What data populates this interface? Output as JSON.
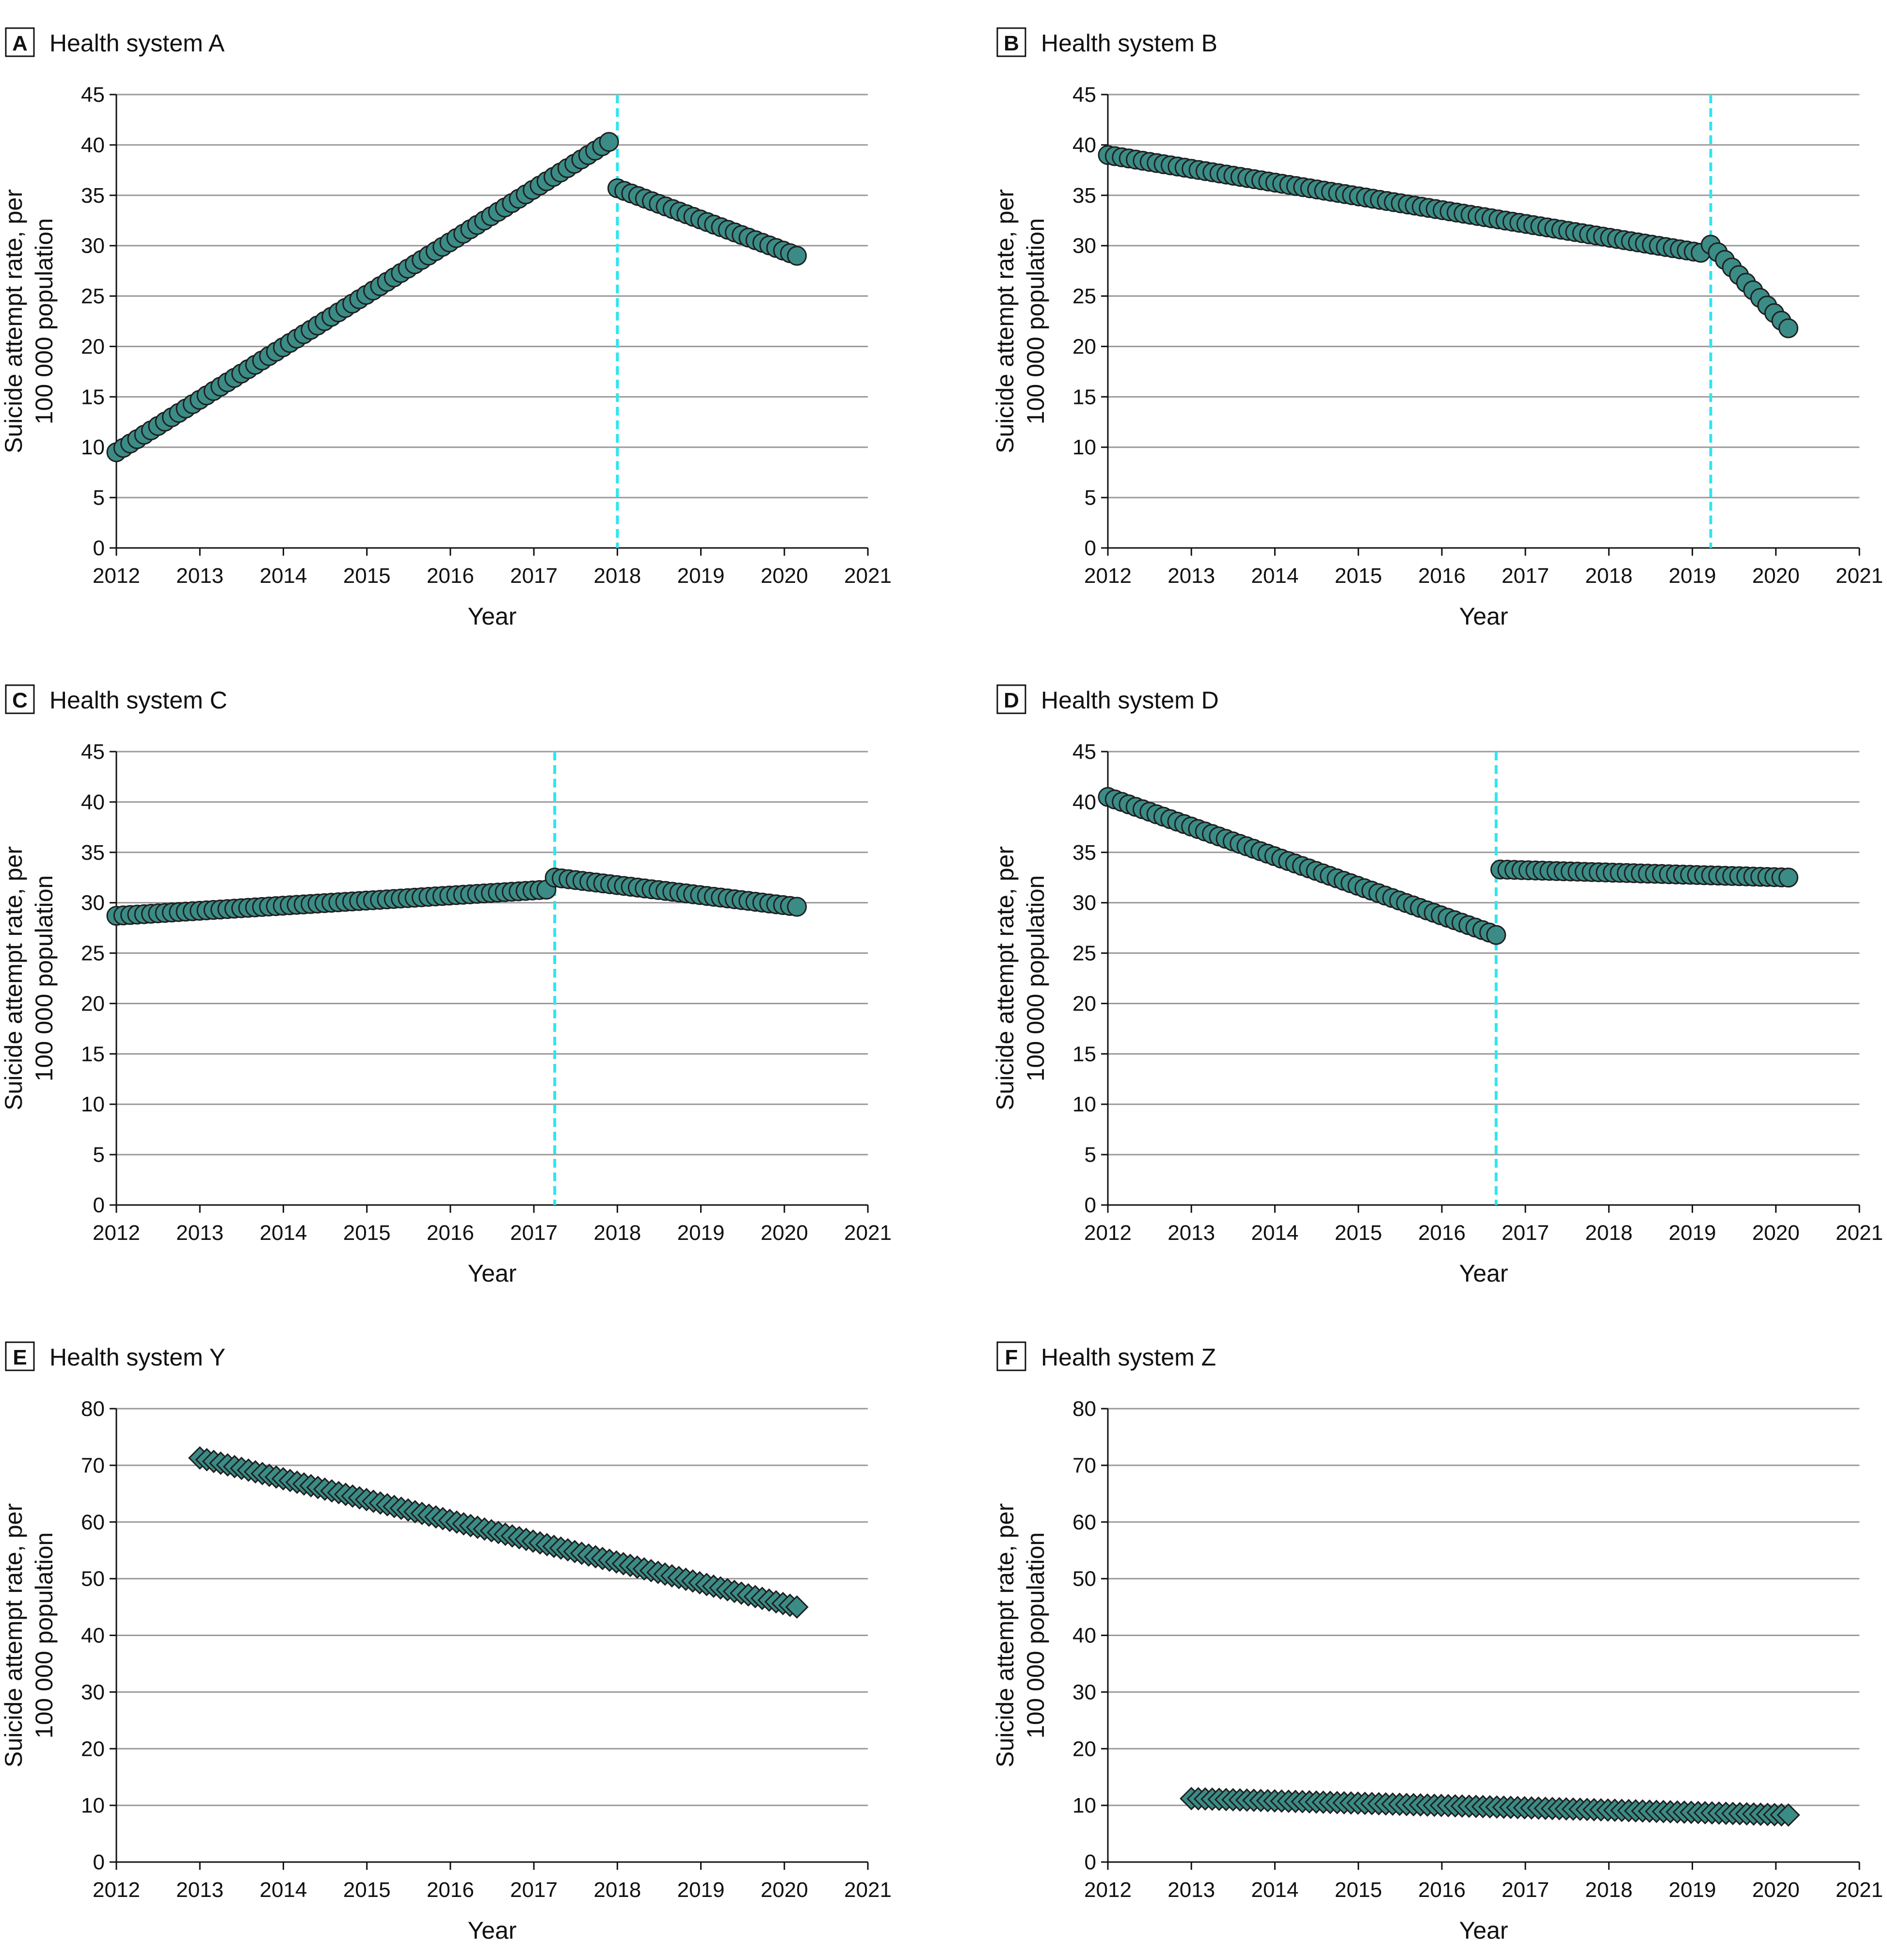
{
  "colors": {
    "marker": "#3b8c86",
    "marker_edge": "#1f1f1f",
    "cut_line": "#2ee6f0",
    "grid": "#9a9a9a"
  },
  "chart_data": [
    {
      "panel": "A",
      "title": "Health system A",
      "type": "scatter",
      "marker": "circle",
      "xlabel": "Year",
      "ylabel_line1": "Suicide attempt rate, per",
      "ylabel_line2": "100 000 population",
      "xlim": [
        2012,
        2021
      ],
      "ylim": [
        0,
        45
      ],
      "xticks": [
        2012,
        2013,
        2014,
        2015,
        2016,
        2017,
        2018,
        2019,
        2020,
        2021
      ],
      "yticks": [
        0,
        5,
        10,
        15,
        20,
        25,
        30,
        35,
        40,
        45
      ],
      "cutoff_x": 2018.0,
      "segments": [
        {
          "x_start": 2012.0,
          "x_end": 2017.9,
          "y_start": 9.5,
          "y_end": 40.3,
          "n": 72
        },
        {
          "x_start": 2018.0,
          "x_end": 2020.15,
          "y_start": 35.7,
          "y_end": 29.0,
          "n": 27
        }
      ]
    },
    {
      "panel": "B",
      "title": "Health system B",
      "type": "scatter",
      "marker": "circle",
      "xlabel": "Year",
      "ylabel_line1": "Suicide attempt rate, per",
      "ylabel_line2": "100 000 population",
      "xlim": [
        2012,
        2021
      ],
      "ylim": [
        0,
        45
      ],
      "xticks": [
        2012,
        2013,
        2014,
        2015,
        2016,
        2017,
        2018,
        2019,
        2020,
        2021
      ],
      "yticks": [
        0,
        5,
        10,
        15,
        20,
        25,
        30,
        35,
        40,
        45
      ],
      "cutoff_x": 2019.22,
      "segments": [
        {
          "x_start": 2012.0,
          "x_end": 2019.1,
          "y_start": 39.0,
          "y_end": 29.3,
          "n": 86
        },
        {
          "x_start": 2019.22,
          "x_end": 2020.15,
          "y_start": 30.1,
          "y_end": 21.8,
          "n": 12
        }
      ]
    },
    {
      "panel": "C",
      "title": "Health system C",
      "type": "scatter",
      "marker": "circle",
      "xlabel": "Year",
      "ylabel_line1": "Suicide attempt rate, per",
      "ylabel_line2": "100 000 population",
      "xlim": [
        2012,
        2021
      ],
      "ylim": [
        0,
        45
      ],
      "xticks": [
        2012,
        2013,
        2014,
        2015,
        2016,
        2017,
        2018,
        2019,
        2020,
        2021
      ],
      "yticks": [
        0,
        5,
        10,
        15,
        20,
        25,
        30,
        35,
        40,
        45
      ],
      "cutoff_x": 2017.25,
      "segments": [
        {
          "x_start": 2012.0,
          "x_end": 2017.15,
          "y_start": 28.7,
          "y_end": 31.3,
          "n": 63
        },
        {
          "x_start": 2017.25,
          "x_end": 2020.15,
          "y_start": 32.5,
          "y_end": 29.6,
          "n": 36
        }
      ]
    },
    {
      "panel": "D",
      "title": "Health system D",
      "type": "scatter",
      "marker": "circle",
      "xlabel": "Year",
      "ylabel_line1": "Suicide attempt rate, per",
      "ylabel_line2": "100 000 population",
      "xlim": [
        2012,
        2021
      ],
      "ylim": [
        0,
        45
      ],
      "xticks": [
        2012,
        2013,
        2014,
        2015,
        2016,
        2017,
        2018,
        2019,
        2020,
        2021
      ],
      "yticks": [
        0,
        5,
        10,
        15,
        20,
        25,
        30,
        35,
        40,
        45
      ],
      "cutoff_x": 2016.65,
      "segments": [
        {
          "x_start": 2012.0,
          "x_end": 2016.65,
          "y_start": 40.5,
          "y_end": 26.8,
          "n": 57
        },
        {
          "x_start": 2016.7,
          "x_end": 2020.15,
          "y_start": 33.3,
          "y_end": 32.5,
          "n": 42
        }
      ]
    },
    {
      "panel": "E",
      "title": "Health system Y",
      "type": "scatter",
      "marker": "diamond",
      "xlabel": "Year",
      "ylabel_line1": "Suicide attempt rate, per",
      "ylabel_line2": "100 000 population",
      "xlim": [
        2012,
        2021
      ],
      "ylim": [
        0,
        80
      ],
      "xticks": [
        2012,
        2013,
        2014,
        2015,
        2016,
        2017,
        2018,
        2019,
        2020,
        2021
      ],
      "yticks": [
        0,
        10,
        20,
        30,
        40,
        50,
        60,
        70,
        80
      ],
      "cutoff_x": null,
      "segments": [
        {
          "x_start": 2013.0,
          "x_end": 2020.15,
          "y_start": 71.3,
          "y_end": 45.0,
          "n": 87
        }
      ]
    },
    {
      "panel": "F",
      "title": "Health system Z",
      "type": "scatter",
      "marker": "diamond",
      "xlabel": "Year",
      "ylabel_line1": "Suicide attempt rate, per",
      "ylabel_line2": "100 000 population",
      "xlim": [
        2012,
        2021
      ],
      "ylim": [
        0,
        80
      ],
      "xticks": [
        2012,
        2013,
        2014,
        2015,
        2016,
        2017,
        2018,
        2019,
        2020,
        2021
      ],
      "yticks": [
        0,
        10,
        20,
        30,
        40,
        50,
        60,
        70,
        80
      ],
      "cutoff_x": null,
      "segments": [
        {
          "x_start": 2013.0,
          "x_end": 2020.15,
          "y_start": 11.2,
          "y_end": 8.3,
          "n": 87
        }
      ]
    }
  ]
}
